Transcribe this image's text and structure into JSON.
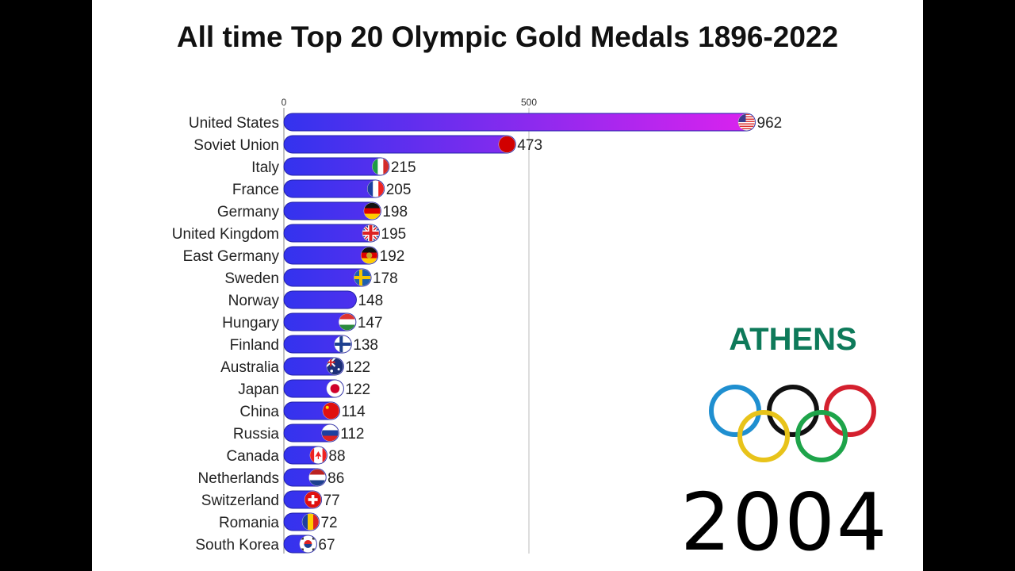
{
  "title": "All time Top 20 Olympic Gold Medals 1896-2022",
  "host_city": "ATHENS",
  "year": "2004",
  "colors": {
    "bar_start": "#3333ee",
    "bar_end": "#dd22ee",
    "city": "#0e7a5a"
  },
  "chart_data": {
    "type": "bar",
    "orientation": "horizontal",
    "title": "All time Top 20 Olympic Gold Medals 1896-2022",
    "xlim": [
      0,
      1050
    ],
    "ticks": [
      0,
      500
    ],
    "grid": true,
    "categories": [
      "United States",
      "Soviet Union",
      "Italy",
      "France",
      "Germany",
      "United Kingdom",
      "East Germany",
      "Sweden",
      "Norway",
      "Hungary",
      "Finland",
      "Australia",
      "Japan",
      "China",
      "Russia",
      "Canada",
      "Netherlands",
      "Switzerland",
      "Romania",
      "South Korea"
    ],
    "values": [
      962,
      473,
      215,
      205,
      198,
      195,
      192,
      178,
      148,
      147,
      138,
      122,
      122,
      114,
      112,
      88,
      86,
      77,
      72,
      67
    ],
    "flags": [
      "flag-usa-icon",
      "flag-soviet-union-icon",
      "flag-italy-icon",
      "flag-france-icon",
      "flag-germany-icon",
      "flag-uk-icon",
      "flag-east-germany-icon",
      "flag-sweden-icon",
      "",
      "flag-hungary-icon",
      "flag-finland-icon",
      "flag-australia-icon",
      "flag-japan-icon",
      "flag-china-icon",
      "flag-russia-icon",
      "flag-canada-icon",
      "flag-netherlands-icon",
      "flag-switzerland-icon",
      "flag-romania-icon",
      "flag-south-korea-icon"
    ]
  }
}
